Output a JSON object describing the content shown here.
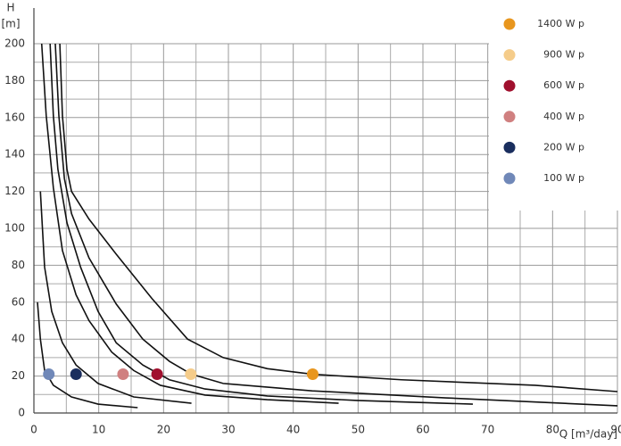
{
  "chart_data": {
    "type": "line",
    "ylabel": [
      "H",
      "[m]"
    ],
    "xlabel": "Q [m³/day]",
    "xlim": [
      0,
      90
    ],
    "xticks": [
      0,
      10,
      20,
      30,
      40,
      50,
      60,
      70,
      80,
      90
    ],
    "xminorticks": [
      5,
      15,
      25,
      35,
      45,
      55,
      65,
      75,
      85
    ],
    "ylim": [
      0,
      200
    ],
    "yticks": [
      0,
      20,
      40,
      60,
      80,
      100,
      120,
      140,
      160,
      180,
      200
    ],
    "yminorticks": [
      10,
      30,
      50,
      70,
      90,
      110,
      130,
      150,
      170,
      190
    ],
    "grid": true,
    "legend": "upper right",
    "line_color": "#111111",
    "series": [
      {
        "name": "1400 W p",
        "color": "#e8961e",
        "x": [
          4,
          4.4,
          5.1,
          5.8,
          8.5,
          12.7,
          18.2,
          23.7,
          29.2,
          36,
          43,
          56.7,
          77.3,
          90
        ],
        "values": [
          200,
          161,
          132,
          120,
          105,
          86,
          62,
          40,
          30,
          24,
          21,
          18,
          15,
          11.6
        ],
        "point": {
          "x": 43,
          "y": 21
        }
      },
      {
        "name": "900 W p",
        "color": "#f5cc8a",
        "x": [
          3.3,
          3.85,
          4.7,
          5.8,
          8.5,
          12.7,
          16.8,
          20.9,
          24.3,
          29.2,
          42.9,
          63.5,
          90
        ],
        "values": [
          200,
          161,
          127,
          108,
          84,
          59,
          40,
          28,
          21,
          16,
          12,
          8.2,
          3.9
        ],
        "point": {
          "x": 24.2,
          "y": 21
        }
      },
      {
        "name": "600 W p",
        "color": "#a0102e",
        "x": [
          2.5,
          3,
          3.7,
          5.1,
          7.2,
          9.9,
          12.7,
          16.8,
          20.9,
          26.4,
          36,
          49.8,
          67.7
        ],
        "values": [
          200,
          161,
          132,
          103,
          79,
          55,
          38,
          26,
          18,
          13,
          9.2,
          6.8,
          4.8
        ],
        "point": {
          "x": 19,
          "y": 21
        }
      },
      {
        "name": "400 W p",
        "color": "#d08080",
        "x": [
          1.2,
          1.9,
          3,
          4.4,
          6.5,
          8.5,
          12,
          15.4,
          19.5,
          26.4,
          36,
          47
        ],
        "values": [
          200,
          161,
          122,
          88,
          64,
          50,
          33,
          23,
          15,
          9.7,
          7.2,
          5.3
        ],
        "point": {
          "x": 13.75,
          "y": 21
        }
      },
      {
        "name": "200 W p",
        "color": "#1a2e5e",
        "x": [
          1,
          1.65,
          2.75,
          4.4,
          6.5,
          9.9,
          15.4,
          24.3
        ],
        "values": [
          120,
          79,
          55,
          38,
          26,
          16,
          8.7,
          5.3
        ],
        "point": {
          "x": 6.5,
          "y": 21
        }
      },
      {
        "name": "100 W p",
        "color": "#7088b8",
        "x": [
          0.55,
          1,
          1.65,
          3,
          5.8,
          9.9,
          16
        ],
        "values": [
          60,
          40,
          23,
          15,
          8.7,
          4.8,
          2.9
        ],
        "point": {
          "x": 2.3,
          "y": 21
        }
      }
    ]
  }
}
